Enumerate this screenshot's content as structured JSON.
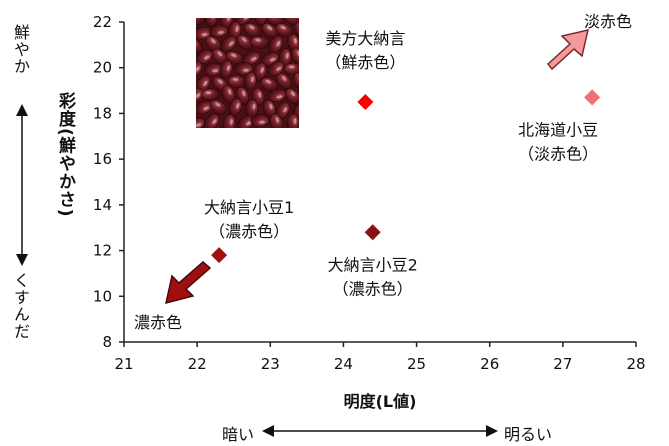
{
  "chart_data": {
    "type": "scatter",
    "xlabel": "明度(L値)",
    "ylabel": "彩度(鮮やかさ)",
    "xlim": [
      21,
      28
    ],
    "ylim": [
      8,
      22
    ],
    "x_ticks": [
      "21",
      "22",
      "23",
      "24",
      "25",
      "26",
      "27",
      "28"
    ],
    "y_ticks": [
      "8",
      "10",
      "12",
      "14",
      "16",
      "18",
      "20",
      "22"
    ],
    "grid": false,
    "points": [
      {
        "x": 24.3,
        "y": 18.5,
        "color": "#ff0000",
        "label_lines": [
          "美方大納言",
          "（鮮赤色）"
        ]
      },
      {
        "x": 27.4,
        "y": 18.7,
        "color": "#f07070",
        "label_lines": [
          "北海道小豆",
          "（淡赤色）"
        ]
      },
      {
        "x": 22.3,
        "y": 11.8,
        "color": "#a01010",
        "label_lines": [
          "大納言小豆1",
          "（濃赤色）"
        ]
      },
      {
        "x": 24.4,
        "y": 12.8,
        "color": "#8b1010",
        "label_lines": [
          "大納言小豆2",
          "（濃赤色）"
        ]
      }
    ],
    "annotations": {
      "light_red": "淡赤色",
      "dark_red": "濃赤色",
      "y_top": "鮮やか",
      "y_bottom": "くすんだ",
      "x_left": "暗い",
      "x_right": "明るい"
    },
    "colors": {
      "light_arrow": "#f49a9a",
      "dark_arrow": "#a01010",
      "bean": "#6b1a22"
    },
    "image": "red-bean-photo"
  }
}
